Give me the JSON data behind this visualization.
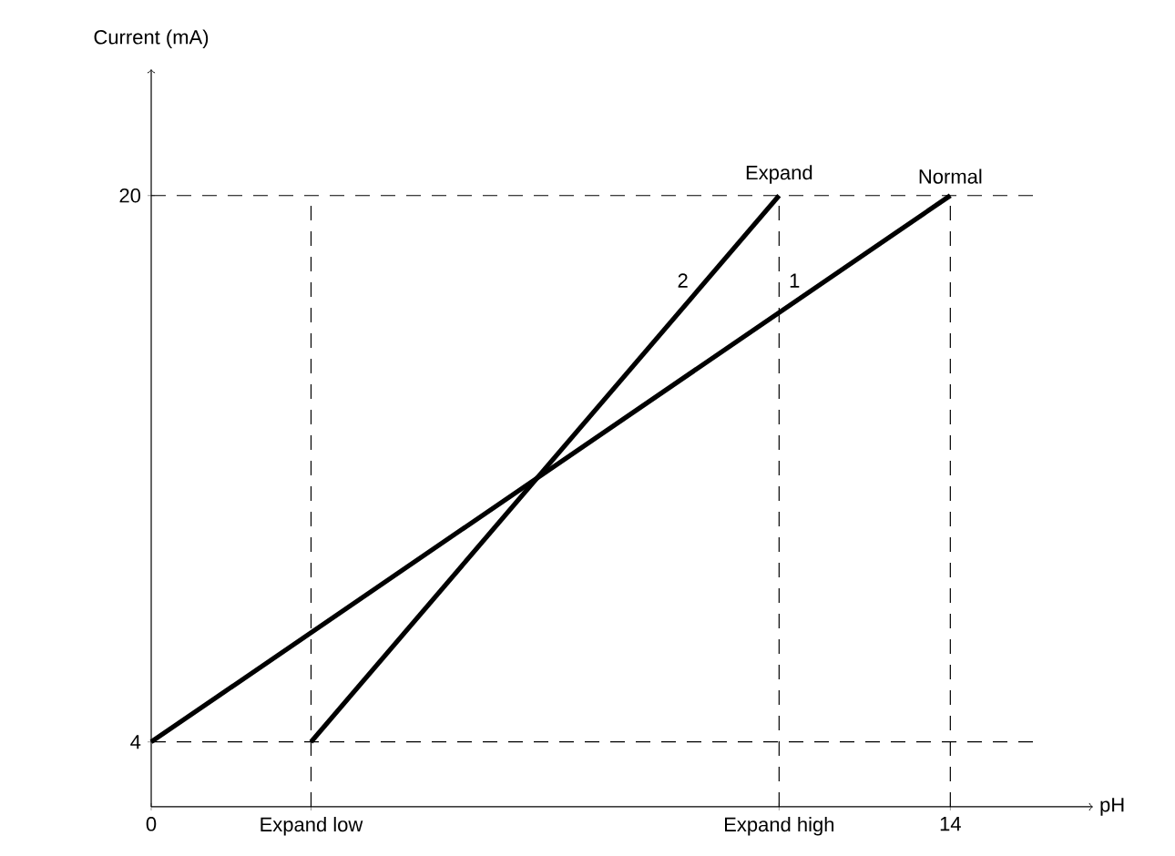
{
  "chart_data": {
    "type": "line",
    "xlabel": "pH",
    "ylabel": "Current (mA)",
    "series": [
      {
        "name": "1",
        "color": "#000000",
        "x": [
          0,
          14
        ],
        "values": [
          4,
          20
        ]
      },
      {
        "name": "2",
        "color": "#000000",
        "x": [
          2.8,
          11
        ],
        "values": [
          4,
          20
        ]
      }
    ],
    "xlim": [
      0,
      16.5
    ],
    "ylim": [
      2.1,
      23.7
    ],
    "xticks": [
      0,
      {
        "value": 2.8,
        "label": "Expand low"
      },
      {
        "value": 11,
        "label": "Expand high"
      },
      14
    ],
    "yticks": [
      4,
      20
    ],
    "ref_lines": [
      {
        "axis": "y",
        "value": 4,
        "line_style": "dashed"
      },
      {
        "axis": "y",
        "value": 20,
        "line_style": "dashed"
      },
      {
        "axis": "x",
        "value": 2.8,
        "line_style": "dashed"
      },
      {
        "axis": "x",
        "value": 11,
        "line_style": "dashed"
      },
      {
        "axis": "x",
        "value": 14,
        "line_style": "dashed"
      }
    ],
    "annotations": [
      {
        "text": "Expand",
        "x": 11,
        "y": 20
      },
      {
        "text": "Normal",
        "x": 14,
        "y": 20
      }
    ],
    "grid": false,
    "legend": false,
    "marker": "none",
    "line_style": "solid"
  }
}
